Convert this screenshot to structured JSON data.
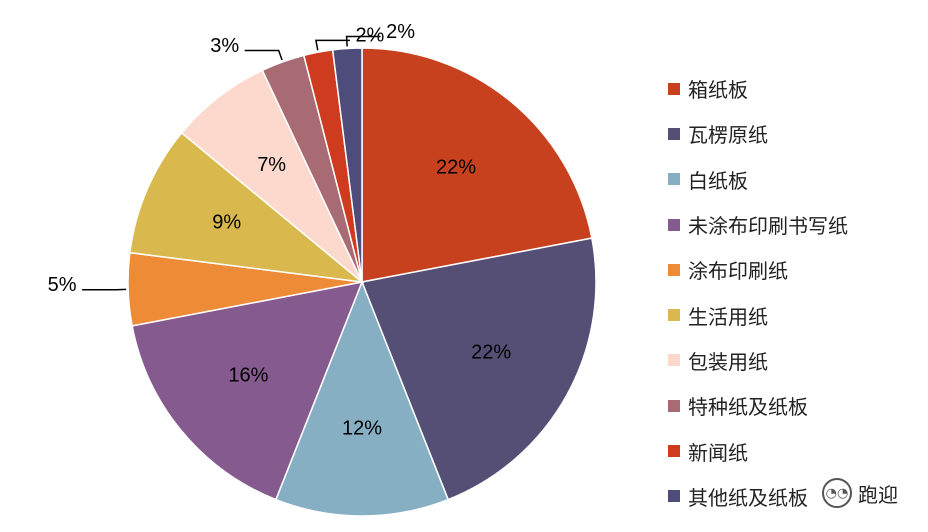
{
  "chart_data": {
    "type": "pie",
    "slices": [
      {
        "name": "箱纸板",
        "value": 22,
        "label": "22%",
        "color": "#C8411E"
      },
      {
        "name": "瓦楞原纸",
        "value": 22,
        "label": "22%",
        "color": "#554E75"
      },
      {
        "name": "白纸板",
        "value": 12,
        "label": "12%",
        "color": "#86AFC4"
      },
      {
        "name": "未涂布印刷书写纸",
        "value": 16,
        "label": "16%",
        "color": "#855A8E"
      },
      {
        "name": "涂布印刷纸",
        "value": 5,
        "label": "5%",
        "color": "#EE8B37"
      },
      {
        "name": "生活用纸",
        "value": 9,
        "label": "9%",
        "color": "#D9B84D"
      },
      {
        "name": "包装用纸",
        "value": 7,
        "label": "7%",
        "color": "#FCD9CC"
      },
      {
        "name": "特种纸及纸板",
        "value": 3,
        "label": "3%",
        "color": "#A96B73"
      },
      {
        "name": "新闻纸",
        "value": 2,
        "label": "2%",
        "color": "#CE3B1E"
      },
      {
        "name": "其他纸及纸板",
        "value": 2,
        "label": "2%",
        "color": "#4E4C7A"
      }
    ],
    "legend_position": "right"
  },
  "watermark": {
    "text": "跑迎",
    "icon": "wechat-icon"
  }
}
